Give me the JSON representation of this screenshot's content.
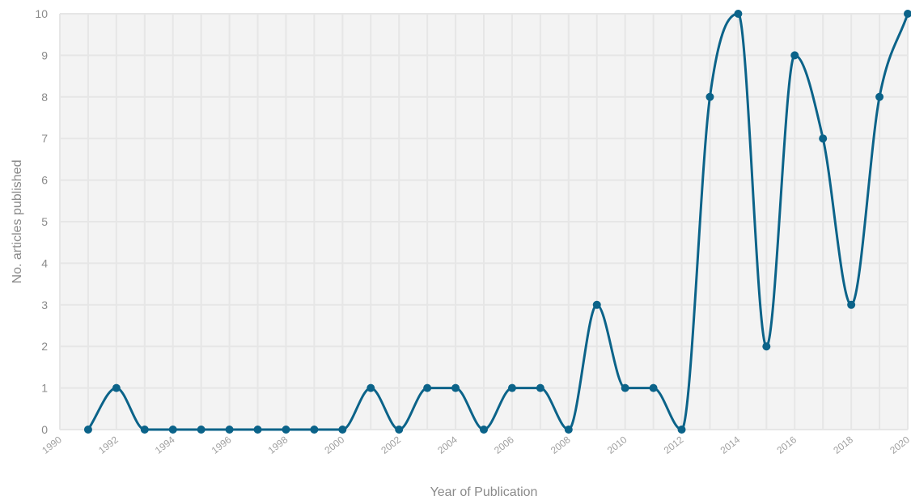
{
  "chart_data": {
    "type": "line",
    "title": "",
    "xlabel": "Year of Publication",
    "ylabel": "No. articles published",
    "xlim": [
      1990,
      2020
    ],
    "ylim": [
      0,
      10
    ],
    "x_ticks": [
      "1990",
      "1992",
      "1994",
      "1996",
      "1998",
      "2000",
      "2002",
      "2004",
      "2006",
      "2008",
      "2010",
      "2012",
      "2014",
      "2016",
      "2018",
      "2020"
    ],
    "y_ticks": [
      "0",
      "1",
      "2",
      "3",
      "4",
      "5",
      "6",
      "7",
      "8",
      "9",
      "10"
    ],
    "grid": true,
    "smooth": true,
    "series": [
      {
        "x": [
          1991,
          1992,
          1993,
          1994,
          1995,
          1996,
          1997,
          1998,
          1999,
          2000,
          2001,
          2002,
          2003,
          2004,
          2005,
          2006,
          2007,
          2008,
          2009,
          2010,
          2011,
          2012,
          2013,
          2014,
          2015,
          2016,
          2017,
          2018,
          2019,
          2020
        ],
        "values": [
          0,
          1,
          0,
          0,
          0,
          0,
          0,
          0,
          0,
          0,
          1,
          0,
          1,
          1,
          0,
          1,
          1,
          0,
          3,
          1,
          1,
          0,
          8,
          10,
          2,
          9,
          7,
          3,
          8,
          10
        ]
      }
    ],
    "colors": {
      "line": "#0b6389",
      "plot_bg": "#f3f3f3",
      "grid": "#e6e6e6"
    }
  }
}
